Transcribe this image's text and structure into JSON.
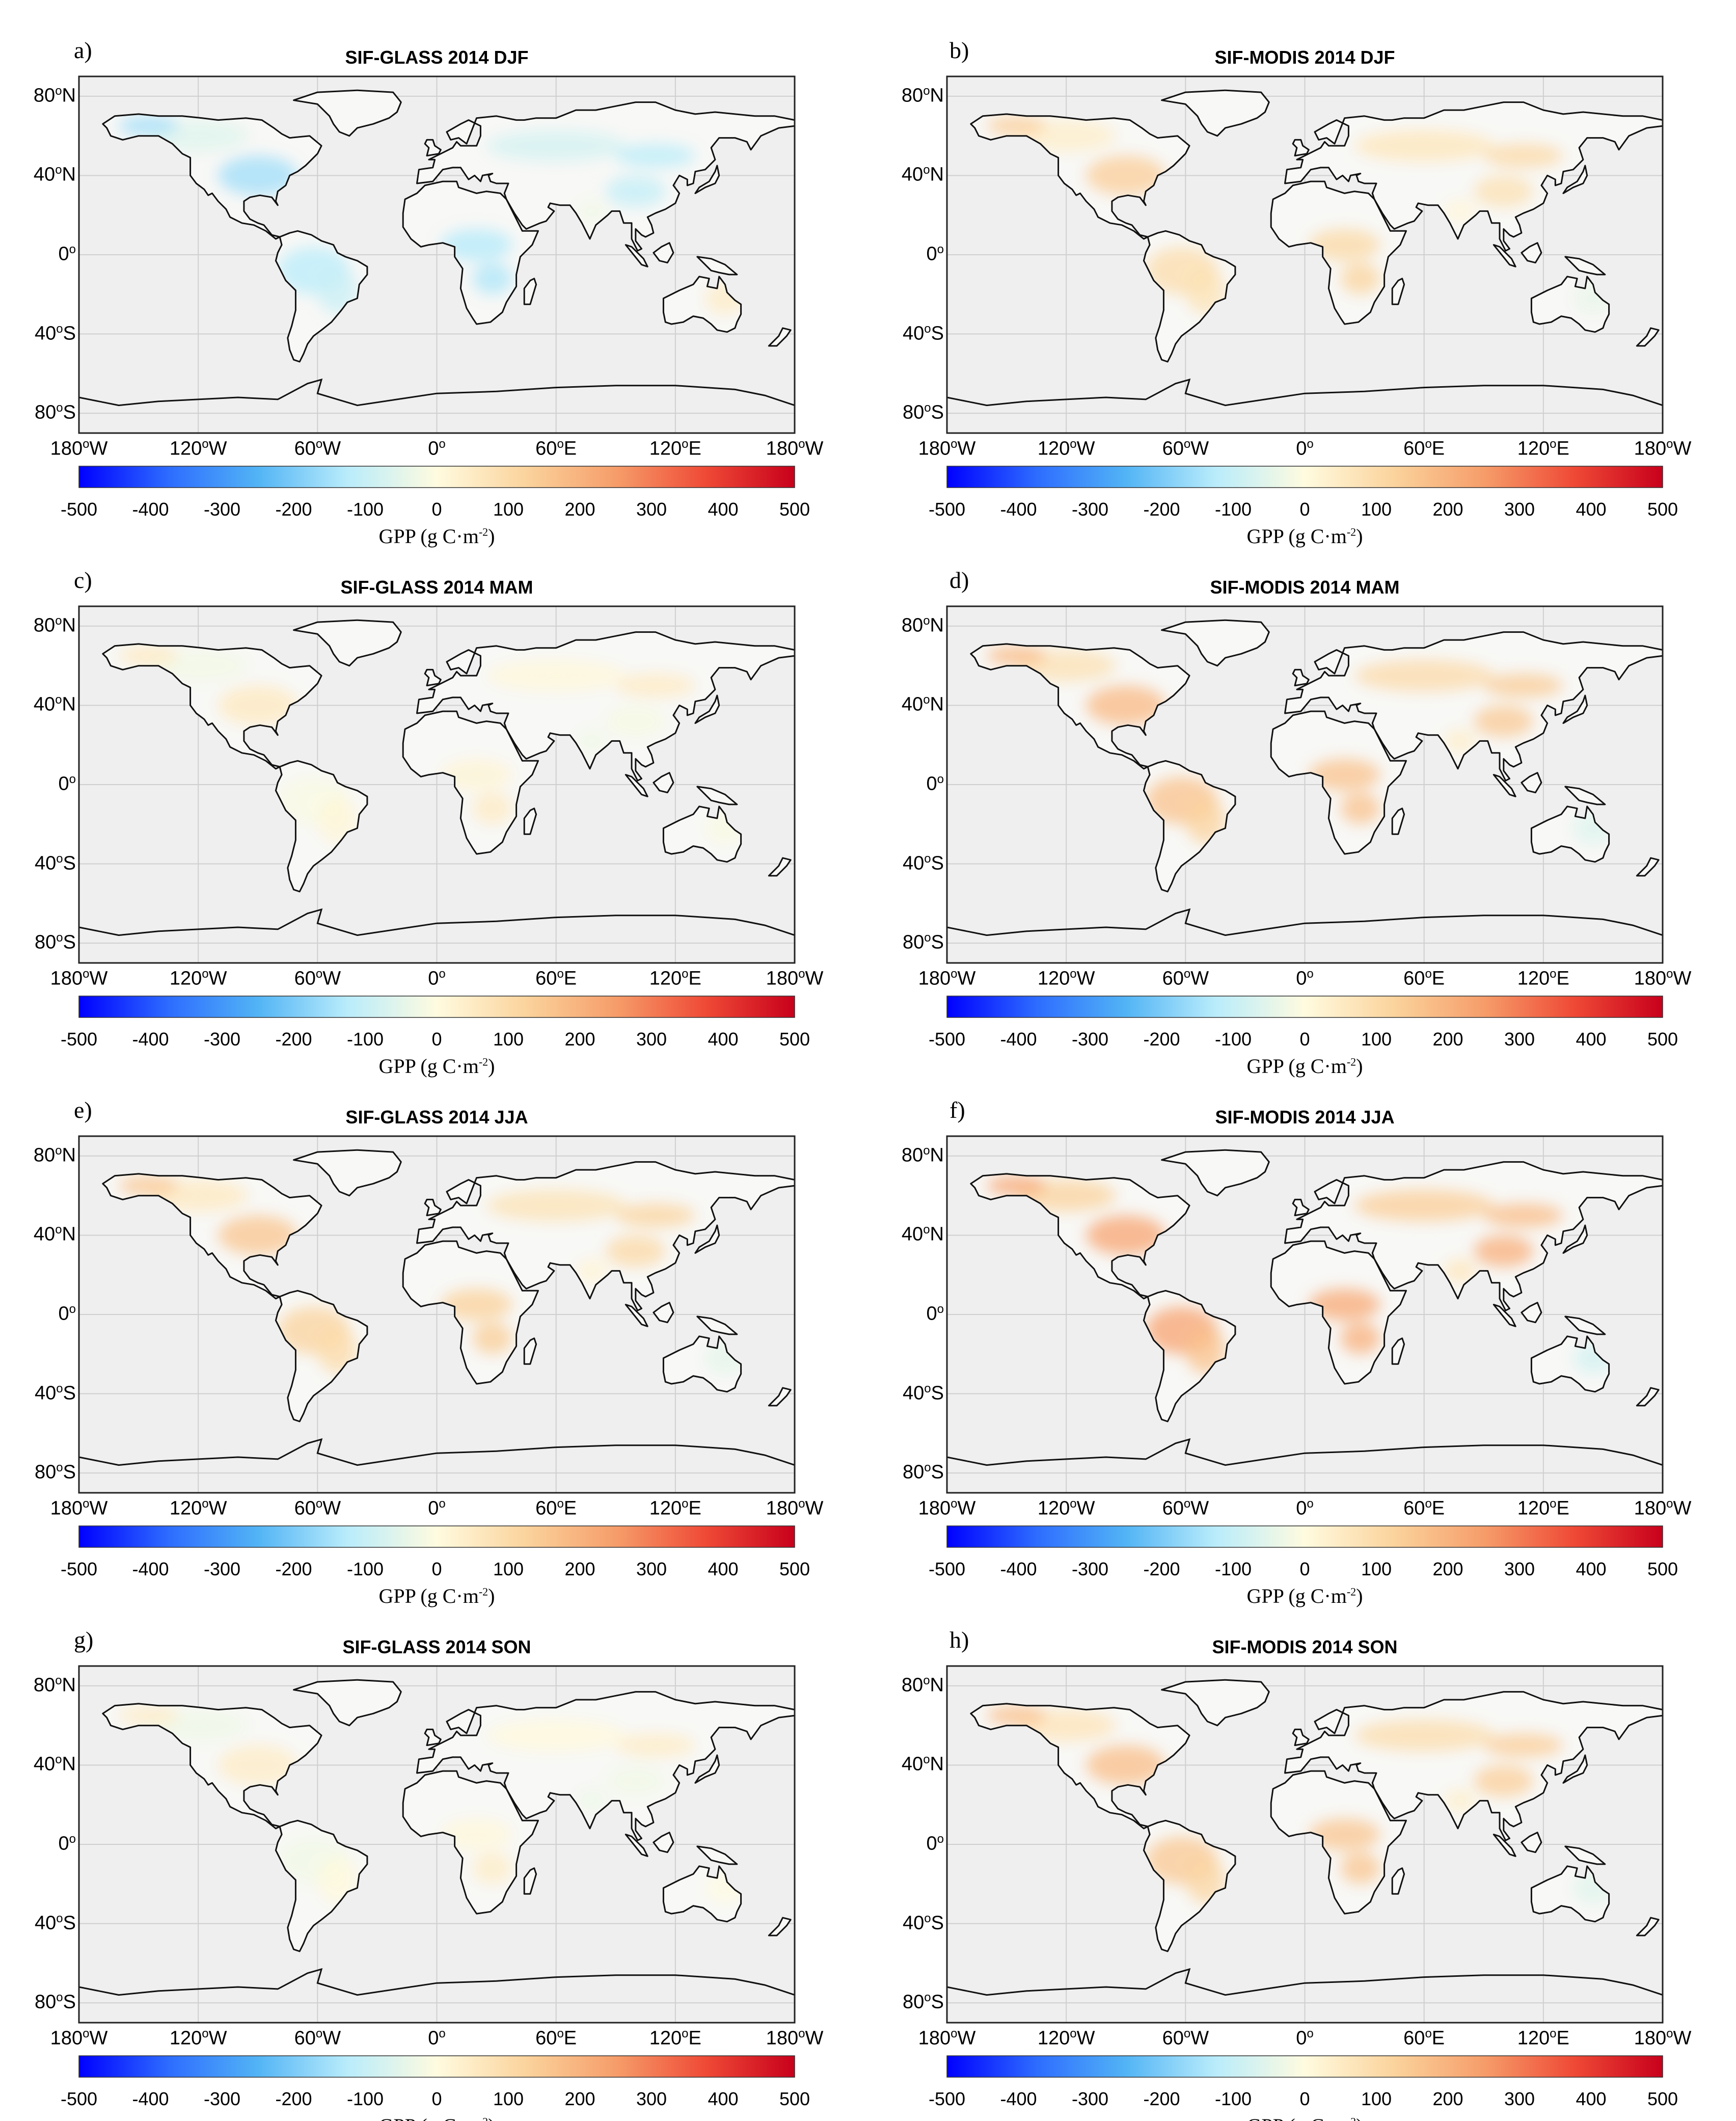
{
  "figure": {
    "colorbar": {
      "ticks": [
        "-500",
        "-400",
        "-300",
        "-200",
        "-100",
        "0",
        "100",
        "200",
        "300",
        "400",
        "500"
      ],
      "label_prefix": "GPP (g C·m",
      "label_exp": "-2",
      "label_suffix": ")",
      "colors": [
        "#0000ff",
        "#2d6cff",
        "#52b4f5",
        "#b9ecfb",
        "#fffbdf",
        "#fbd39c",
        "#f69d6a",
        "#ef4a36",
        "#c8001c"
      ]
    },
    "map_colors": {
      "ocean": "#efefef",
      "land": "#f8f8f6",
      "coast": "#111111",
      "grid": "#cfcfcf"
    },
    "lon_ticks": [
      {
        "v": "180",
        "s": "o",
        "h": "W"
      },
      {
        "v": "120",
        "s": "o",
        "h": "W"
      },
      {
        "v": "60",
        "s": "o",
        "h": "W"
      },
      {
        "v": "0",
        "s": "o",
        "h": ""
      },
      {
        "v": "60",
        "s": "o",
        "h": "E"
      },
      {
        "v": "120",
        "s": "o",
        "h": "E"
      },
      {
        "v": "180",
        "s": "o",
        "h": "W"
      }
    ],
    "lat_ticks": [
      {
        "v": "80",
        "s": "o",
        "h": "N"
      },
      {
        "v": "40",
        "s": "o",
        "h": "N"
      },
      {
        "v": "0",
        "s": "o",
        "h": ""
      },
      {
        "v": "40",
        "s": "o",
        "h": "S"
      },
      {
        "v": "80",
        "s": "o",
        "h": "S"
      }
    ],
    "panels": [
      {
        "label": "a)",
        "title": "SIF-GLASS 2014 DJF",
        "tint": -0.6
      },
      {
        "label": "b)",
        "title": "SIF-MODIS 2014 DJF",
        "tint": 0.5
      },
      {
        "label": "c)",
        "title": "SIF-GLASS 2014 MAM",
        "tint": 0.1
      },
      {
        "label": "d)",
        "title": "SIF-MODIS 2014 MAM",
        "tint": 0.75
      },
      {
        "label": "e)",
        "title": "SIF-GLASS 2014 JJA",
        "tint": 0.6
      },
      {
        "label": "f)",
        "title": "SIF-MODIS 2014 JJA",
        "tint": 1.0
      },
      {
        "label": "g)",
        "title": "SIF-GLASS 2014 SON",
        "tint": 0.05
      },
      {
        "label": "h)",
        "title": "SIF-MODIS 2014 SON",
        "tint": 0.7
      }
    ]
  }
}
